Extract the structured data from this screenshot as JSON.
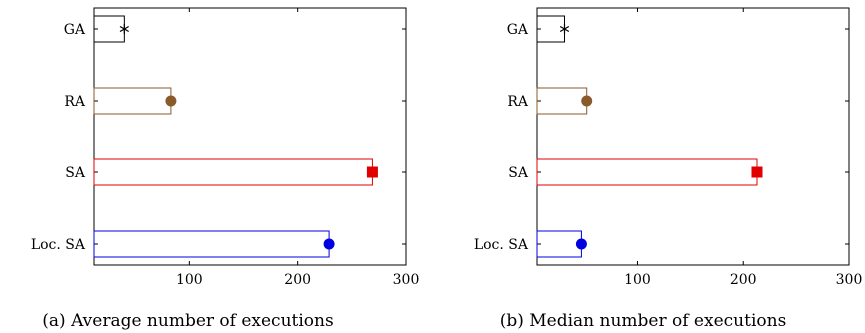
{
  "chart_data": [
    {
      "type": "bar",
      "orientation": "horizontal",
      "caption": "(a) Average number of executions",
      "categories": [
        "GA",
        "RA",
        "SA",
        "Loc. SA"
      ],
      "values": [
        40,
        83,
        269,
        229
      ],
      "xlim": [
        12,
        300
      ],
      "xticks": [
        100,
        200,
        300
      ],
      "grid": false,
      "series_colors": [
        "#000000",
        "#8B5A2B",
        "#E00000",
        "#0000E0"
      ],
      "markers": [
        "star",
        "circle",
        "square",
        "circle"
      ]
    },
    {
      "type": "bar",
      "orientation": "horizontal",
      "caption": "(b) Median number of executions",
      "categories": [
        "GA",
        "RA",
        "SA",
        "Loc. SA"
      ],
      "values": [
        31,
        52,
        213,
        47
      ],
      "xlim": [
        5,
        300
      ],
      "xticks": [
        100,
        200,
        300
      ],
      "grid": false,
      "series_colors": [
        "#000000",
        "#8B5A2B",
        "#E00000",
        "#0000E0"
      ],
      "markers": [
        "star",
        "circle",
        "square",
        "circle"
      ]
    }
  ]
}
